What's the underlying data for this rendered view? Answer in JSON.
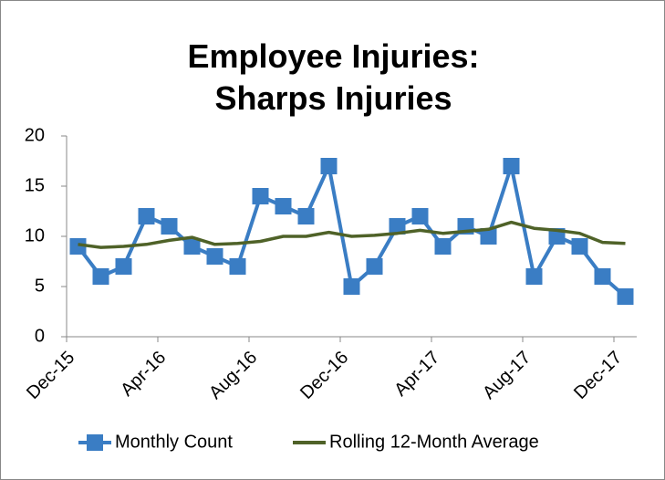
{
  "chart_data": {
    "type": "line",
    "title": "Employee Injuries: Sharps Injuries",
    "categories": [
      "Dec-15",
      null,
      null,
      null,
      "Apr-16",
      null,
      null,
      null,
      "Aug-16",
      null,
      null,
      null,
      "Dec-16",
      null,
      null,
      null,
      "Apr-17",
      null,
      null,
      null,
      "Aug-17",
      null,
      null,
      null,
      "Dec-17"
    ],
    "series": [
      {
        "name": "Monthly Count",
        "color": "#3a7dc4",
        "values": [
          9,
          6,
          7,
          12,
          11,
          9,
          8,
          7,
          14,
          13,
          12,
          17,
          5,
          7,
          11,
          12,
          9,
          11,
          10,
          17,
          6,
          10,
          9,
          6,
          4
        ]
      },
      {
        "name": "Rolling 12-Month Average",
        "color": "#4f6228",
        "values": [
          9.2,
          8.9,
          9.0,
          9.2,
          9.6,
          9.9,
          9.2,
          9.3,
          9.5,
          10.0,
          10.0,
          10.4,
          10.0,
          10.1,
          10.3,
          10.6,
          10.3,
          10.5,
          10.7,
          11.4,
          10.8,
          10.6,
          10.3,
          9.4,
          9.3
        ]
      }
    ],
    "ylim": [
      0,
      20
    ],
    "yticks": [
      0,
      5,
      10,
      15,
      20
    ],
    "grid": false,
    "legend": "bottom"
  }
}
